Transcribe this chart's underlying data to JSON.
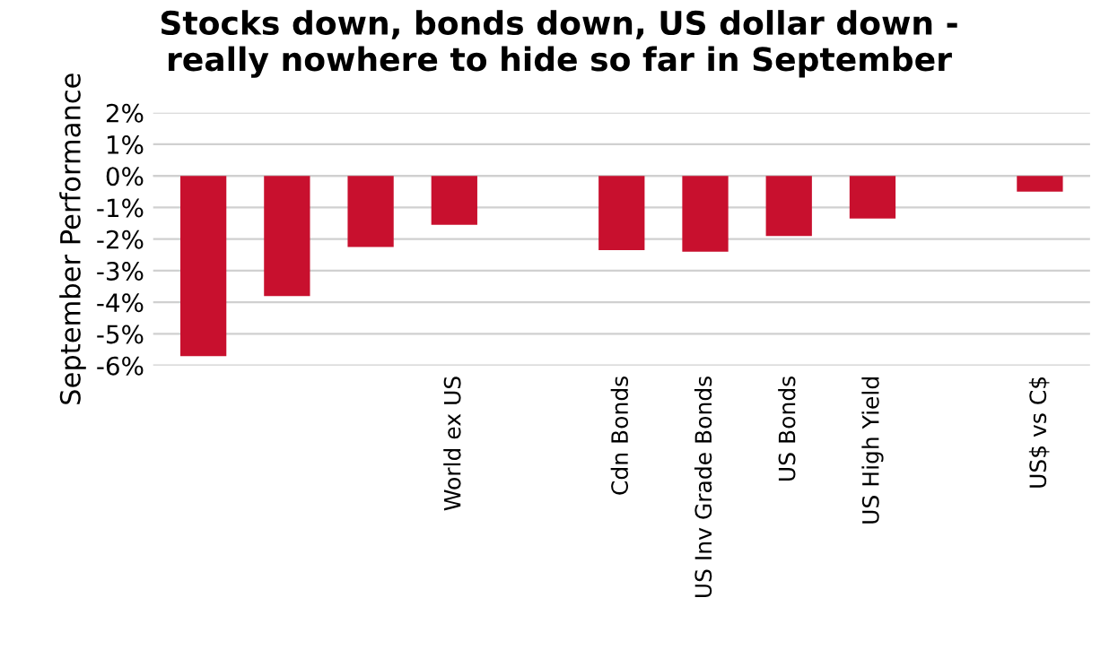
{
  "chart_data": {
    "type": "bar",
    "title": "Stocks down, bonds down, US dollar down -\nreally nowhere to hide so far in September",
    "ylabel": "September Performance",
    "categories": [
      null,
      null,
      null,
      "World ex US",
      null,
      "Cdn Bonds",
      "US Inv Grade Bonds",
      "US Bonds",
      "US High Yield",
      null,
      "US$ vs C$"
    ],
    "values": [
      -5.7,
      -3.8,
      -2.25,
      -1.55,
      null,
      -2.35,
      -2.4,
      -1.9,
      -1.35,
      null,
      -0.5
    ],
    "color": "#c8102e",
    "ylim": [
      -6,
      2
    ],
    "yticks": [
      {
        "value": 2,
        "label": "2%"
      },
      {
        "value": 1,
        "label": "1%"
      },
      {
        "value": 0,
        "label": "0%"
      },
      {
        "value": -1,
        "label": "-1%"
      },
      {
        "value": -2,
        "label": "-2%"
      },
      {
        "value": -3,
        "label": "-3%"
      },
      {
        "value": -4,
        "label": "-4%"
      },
      {
        "value": -5,
        "label": "-5%"
      },
      {
        "value": -6,
        "label": "-6%"
      }
    ],
    "grid": "y",
    "legend": false
  }
}
